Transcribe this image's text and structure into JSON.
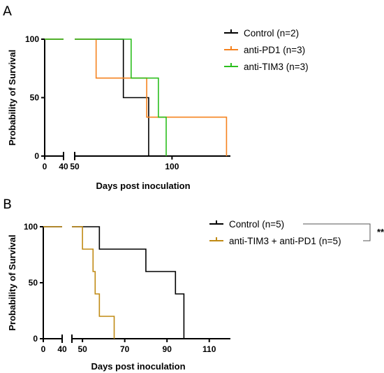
{
  "chart_data": [
    {
      "panel": "A",
      "type": "line",
      "step": true,
      "xlabel": "Days post inoculation",
      "ylabel": "Probability of Survival",
      "xticks": [
        0,
        40,
        50,
        100
      ],
      "yticks": [
        0,
        50,
        100
      ],
      "ylim": [
        0,
        100
      ],
      "x_axis_break": [
        40,
        50
      ],
      "legend_position": "top-right",
      "series": [
        {
          "name": "Control (n=2)",
          "color": "#000000",
          "x": [
            0,
            75,
            75,
            88,
            88
          ],
          "y": [
            100,
            100,
            50,
            50,
            0
          ]
        },
        {
          "name": "anti-PD1 (n=3)",
          "color": "#f5821f",
          "x": [
            0,
            61,
            61,
            87,
            87,
            128,
            128
          ],
          "y": [
            100,
            100,
            66.7,
            66.7,
            33.3,
            33.3,
            0
          ]
        },
        {
          "name": "anti-TIM3 (n=3)",
          "color": "#2cbf1e",
          "x": [
            0,
            79,
            79,
            93,
            93,
            97,
            97
          ],
          "y": [
            100,
            100,
            66.7,
            66.7,
            33.3,
            33.3,
            0
          ]
        }
      ],
      "significance": ""
    },
    {
      "panel": "B",
      "type": "line",
      "step": true,
      "xlabel": "Days post inoculation",
      "ylabel": "Probability of Survival",
      "xticks": [
        0,
        40,
        50,
        70,
        90,
        110
      ],
      "yticks": [
        0,
        50,
        100
      ],
      "ylim": [
        0,
        100
      ],
      "x_axis_break": [
        40,
        45
      ],
      "legend_position": "top-right",
      "series": [
        {
          "name": "Control (n=5)",
          "color": "#000000",
          "x": [
            0,
            58,
            58,
            80,
            80,
            94,
            94,
            98,
            98
          ],
          "y": [
            100,
            100,
            80,
            80,
            60,
            60,
            40,
            40,
            0
          ]
        },
        {
          "name": "anti-TIM3 + anti-PD1 (n=5)",
          "color": "#c08a14",
          "x": [
            0,
            50,
            50,
            55,
            55,
            56,
            56,
            58,
            58,
            65,
            65
          ],
          "y": [
            100,
            100,
            80,
            80,
            60,
            60,
            40,
            40,
            20,
            20,
            0
          ]
        }
      ],
      "significance": "**"
    }
  ]
}
